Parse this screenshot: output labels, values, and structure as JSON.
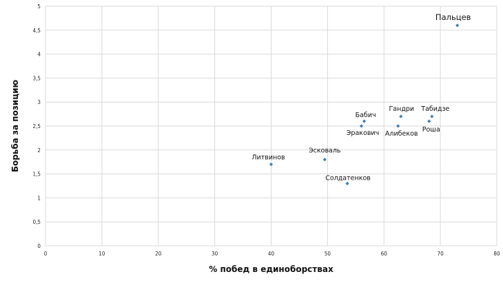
{
  "chart_data": {
    "type": "scatter",
    "title": "",
    "xlabel": "% побед в единоборствах",
    "ylabel": "Борьба за позицию",
    "xlim": [
      0,
      80
    ],
    "ylim": [
      0,
      5
    ],
    "xticks": [
      "0",
      "10",
      "20",
      "30",
      "40",
      "50",
      "60",
      "70",
      "80"
    ],
    "yticks": [
      "0",
      "0,5",
      "1",
      "1,5",
      "2",
      "2,5",
      "3",
      "3,5",
      "4",
      "4,5",
      "5"
    ],
    "grid": true,
    "marker_color": "#3f7fb5",
    "points": [
      {
        "label": "Литвинов",
        "x": 40,
        "y": 1.7,
        "color": "#111111",
        "emphasis": false
      },
      {
        "label": "Эсковаль",
        "x": 49.5,
        "y": 1.8,
        "color": "#111111",
        "emphasis": false
      },
      {
        "label": "Солдатенков",
        "x": 53.5,
        "y": 1.3,
        "color": "#111111",
        "emphasis": false
      },
      {
        "label": "Бабич",
        "x": 56.5,
        "y": 2.6,
        "color": "#111111",
        "emphasis": false
      },
      {
        "label": "Эракович",
        "x": 56,
        "y": 2.5,
        "color": "#111111",
        "emphasis": false
      },
      {
        "label": "Гандри",
        "x": 63,
        "y": 2.7,
        "color": "#111111",
        "emphasis": false
      },
      {
        "label": "Алибеков",
        "x": 62.5,
        "y": 2.5,
        "color": "#1f4e79",
        "emphasis": false
      },
      {
        "label": "Табидзе",
        "x": 68.5,
        "y": 2.7,
        "color": "#1f4e79",
        "emphasis": false
      },
      {
        "label": "Роша",
        "x": 68,
        "y": 2.6,
        "color": "#111111",
        "emphasis": false
      },
      {
        "label": "Пальцев",
        "x": 73,
        "y": 4.6,
        "color": "#111111",
        "emphasis": true
      }
    ]
  }
}
